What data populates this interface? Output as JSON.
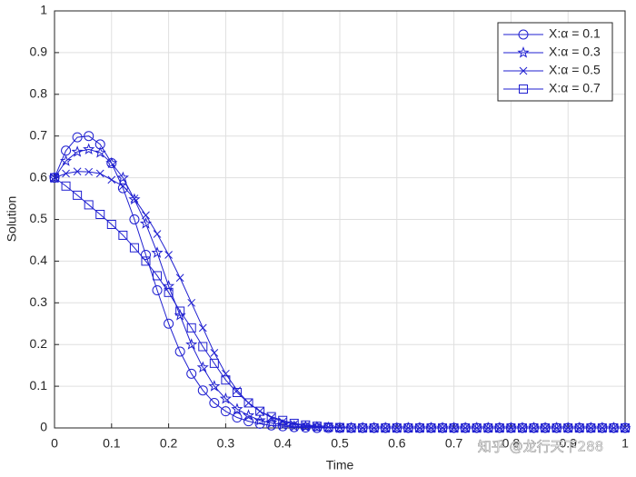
{
  "chart_data": {
    "type": "line",
    "xlabel": "Time",
    "ylabel": "Solution",
    "x": [
      0,
      0.02,
      0.04,
      0.06,
      0.08,
      0.1,
      0.12,
      0.14,
      0.16,
      0.18,
      0.2,
      0.22,
      0.24,
      0.26,
      0.28,
      0.3,
      0.32,
      0.34,
      0.36,
      0.38,
      0.4,
      0.42,
      0.44,
      0.46,
      0.48,
      0.5,
      0.52,
      0.54,
      0.56,
      0.58,
      0.6,
      0.62,
      0.64,
      0.66,
      0.68,
      0.7,
      0.72,
      0.74,
      0.76,
      0.78,
      0.8,
      0.82,
      0.84,
      0.86,
      0.88,
      0.9,
      0.92,
      0.94,
      0.96,
      0.98,
      1
    ],
    "series": [
      {
        "name": "X:α = 0.1",
        "color": "#1f1fd0",
        "marker": "circle",
        "values": [
          0.6,
          0.665,
          0.697,
          0.7,
          0.68,
          0.635,
          0.575,
          0.5,
          0.415,
          0.33,
          0.25,
          0.183,
          0.13,
          0.09,
          0.06,
          0.04,
          0.025,
          0.016,
          0.01,
          0.006,
          0.004,
          0.002,
          0.001,
          0,
          0,
          0,
          0,
          0,
          0,
          0,
          0,
          0,
          0,
          0,
          0,
          0,
          0,
          0,
          0,
          0,
          0,
          0,
          0,
          0,
          0,
          0,
          0,
          0,
          0,
          0,
          0
        ]
      },
      {
        "name": "X:α = 0.3",
        "color": "#1f1fd0",
        "marker": "star",
        "values": [
          0.6,
          0.64,
          0.662,
          0.668,
          0.66,
          0.635,
          0.6,
          0.548,
          0.49,
          0.42,
          0.34,
          0.27,
          0.2,
          0.145,
          0.1,
          0.07,
          0.045,
          0.03,
          0.018,
          0.012,
          0.007,
          0.004,
          0.003,
          0.002,
          0.001,
          0,
          0,
          0,
          0,
          0,
          0,
          0,
          0,
          0,
          0,
          0,
          0,
          0,
          0,
          0,
          0,
          0,
          0,
          0,
          0,
          0,
          0,
          0,
          0,
          0,
          0
        ]
      },
      {
        "name": "X:α = 0.5",
        "color": "#1f1fd0",
        "marker": "x",
        "values": [
          0.6,
          0.61,
          0.615,
          0.614,
          0.61,
          0.595,
          0.58,
          0.55,
          0.51,
          0.465,
          0.415,
          0.36,
          0.3,
          0.24,
          0.18,
          0.13,
          0.09,
          0.06,
          0.04,
          0.025,
          0.015,
          0.009,
          0.005,
          0.003,
          0.002,
          0.001,
          0,
          0,
          0,
          0,
          0,
          0,
          0,
          0,
          0,
          0,
          0,
          0,
          0,
          0,
          0,
          0,
          0,
          0,
          0,
          0,
          0,
          0,
          0,
          0,
          0
        ]
      },
      {
        "name": "X:α = 0.7",
        "color": "#1f1fd0",
        "marker": "square",
        "values": [
          0.6,
          0.58,
          0.558,
          0.535,
          0.512,
          0.488,
          0.462,
          0.432,
          0.4,
          0.365,
          0.325,
          0.28,
          0.24,
          0.195,
          0.155,
          0.115,
          0.085,
          0.06,
          0.04,
          0.027,
          0.018,
          0.011,
          0.007,
          0.004,
          0.002,
          0.001,
          0,
          0,
          0,
          0,
          0,
          0,
          0,
          0,
          0,
          0,
          0,
          0,
          0,
          0,
          0,
          0,
          0,
          0,
          0,
          0,
          0,
          0,
          0,
          0,
          0
        ]
      }
    ],
    "xlim": [
      0,
      1
    ],
    "ylim": [
      0,
      1
    ],
    "xticks": [
      0,
      0.1,
      0.2,
      0.3,
      0.4,
      0.5,
      0.6,
      0.7,
      0.8,
      0.9,
      1
    ],
    "yticks": [
      0,
      0.1,
      0.2,
      0.3,
      0.4,
      0.5,
      0.6,
      0.7,
      0.8,
      0.9,
      1
    ],
    "grid": true,
    "legend": "northeast",
    "watermark": "知乎 @龙行天下288"
  }
}
